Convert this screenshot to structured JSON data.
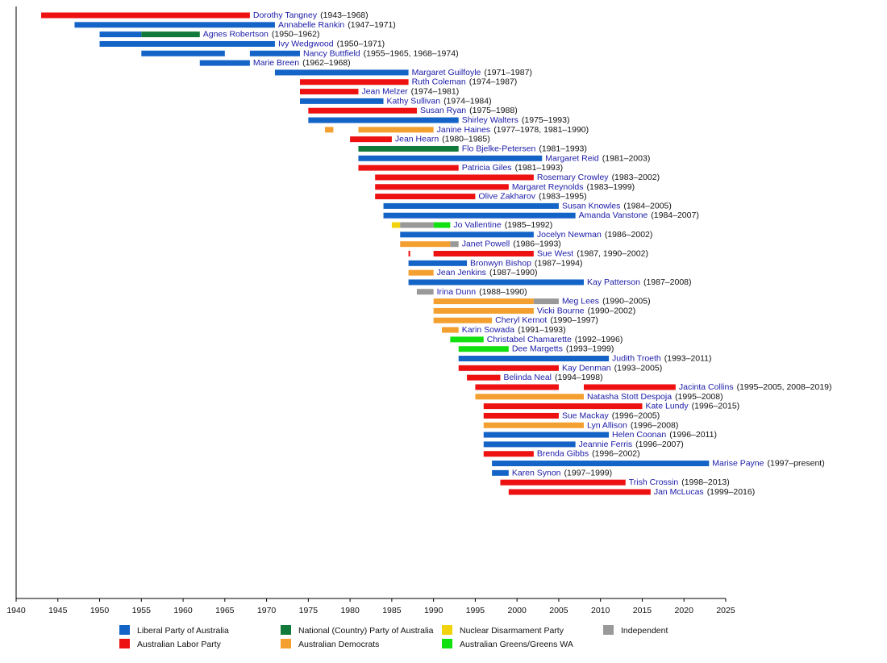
{
  "chart_data": {
    "type": "timeline",
    "xlim": [
      1940,
      2025
    ],
    "xticks": [
      1940,
      1945,
      1950,
      1955,
      1960,
      1965,
      1970,
      1975,
      1980,
      1985,
      1990,
      1995,
      2000,
      2005,
      2010,
      2015,
      2020,
      2025
    ],
    "legend": [
      {
        "name": "Liberal Party of Australia",
        "color": "#1464c8"
      },
      {
        "name": "Australian Labor Party",
        "color": "#ee1111"
      },
      {
        "name": "National (Country) Party of Australia",
        "color": "#117a3a"
      },
      {
        "name": "Australian Democrats",
        "color": "#f4a030"
      },
      {
        "name": "Nuclear Disarmament Party",
        "color": "#f2d20a"
      },
      {
        "name": "Australian Greens/Greens WA",
        "color": "#11e011"
      },
      {
        "name": "Independent",
        "color": "#999999"
      }
    ],
    "rows": [
      {
        "name": "Dorothy Tangney",
        "period": "(1943–1968)",
        "segments": [
          {
            "start": 1943,
            "end": 1968,
            "color": "#ee1111"
          }
        ]
      },
      {
        "name": "Annabelle Rankin",
        "period": "(1947–1971)",
        "segments": [
          {
            "start": 1947,
            "end": 1971,
            "color": "#1464c8"
          }
        ]
      },
      {
        "name": "Agnes Robertson",
        "period": "(1950–1962)",
        "segments": [
          {
            "start": 1950,
            "end": 1955,
            "color": "#1464c8"
          },
          {
            "start": 1955,
            "end": 1962,
            "color": "#117a3a"
          }
        ]
      },
      {
        "name": "Ivy Wedgwood",
        "period": "(1950–1971)",
        "segments": [
          {
            "start": 1950,
            "end": 1971,
            "color": "#1464c8"
          }
        ]
      },
      {
        "name": "Nancy Buttfield",
        "period": "(1955–1965, 1968–1974)",
        "segments": [
          {
            "start": 1955,
            "end": 1965,
            "color": "#1464c8"
          },
          {
            "start": 1968,
            "end": 1974,
            "color": "#1464c8"
          }
        ]
      },
      {
        "name": "Marie Breen",
        "period": "(1962–1968)",
        "segments": [
          {
            "start": 1962,
            "end": 1968,
            "color": "#1464c8"
          }
        ]
      },
      {
        "name": "Margaret Guilfoyle",
        "period": "(1971–1987)",
        "segments": [
          {
            "start": 1971,
            "end": 1987,
            "color": "#1464c8"
          }
        ]
      },
      {
        "name": "Ruth Coleman",
        "period": "(1974–1987)",
        "segments": [
          {
            "start": 1974,
            "end": 1987,
            "color": "#ee1111"
          }
        ]
      },
      {
        "name": "Jean Melzer",
        "period": "(1974–1981)",
        "segments": [
          {
            "start": 1974,
            "end": 1981,
            "color": "#ee1111"
          }
        ]
      },
      {
        "name": "Kathy Sullivan",
        "period": "(1974–1984)",
        "segments": [
          {
            "start": 1974,
            "end": 1984,
            "color": "#1464c8"
          }
        ]
      },
      {
        "name": "Susan Ryan",
        "period": "(1975–1988)",
        "segments": [
          {
            "start": 1975,
            "end": 1988,
            "color": "#ee1111"
          }
        ]
      },
      {
        "name": "Shirley Walters",
        "period": "(1975–1993)",
        "segments": [
          {
            "start": 1975,
            "end": 1993,
            "color": "#1464c8"
          }
        ]
      },
      {
        "name": "Janine Haines",
        "period": "(1977–1978, 1981–1990)",
        "segments": [
          {
            "start": 1977,
            "end": 1978,
            "color": "#f4a030"
          },
          {
            "start": 1981,
            "end": 1990,
            "color": "#f4a030"
          }
        ]
      },
      {
        "name": "Jean Hearn",
        "period": "(1980–1985)",
        "segments": [
          {
            "start": 1980,
            "end": 1985,
            "color": "#ee1111"
          }
        ]
      },
      {
        "name": "Flo Bjelke-Petersen",
        "period": "(1981–1993)",
        "segments": [
          {
            "start": 1981,
            "end": 1993,
            "color": "#117a3a"
          }
        ]
      },
      {
        "name": "Margaret Reid",
        "period": "(1981–2003)",
        "segments": [
          {
            "start": 1981,
            "end": 2003,
            "color": "#1464c8"
          }
        ]
      },
      {
        "name": "Patricia Giles",
        "period": "(1981–1993)",
        "segments": [
          {
            "start": 1981,
            "end": 1993,
            "color": "#ee1111"
          }
        ]
      },
      {
        "name": "Rosemary Crowley",
        "period": "(1983–2002)",
        "segments": [
          {
            "start": 1983,
            "end": 2002,
            "color": "#ee1111"
          }
        ]
      },
      {
        "name": "Margaret Reynolds",
        "period": "(1983–1999)",
        "segments": [
          {
            "start": 1983,
            "end": 1999,
            "color": "#ee1111"
          }
        ]
      },
      {
        "name": "Olive Zakharov",
        "period": "(1983–1995)",
        "segments": [
          {
            "start": 1983,
            "end": 1995,
            "color": "#ee1111"
          }
        ]
      },
      {
        "name": "Susan Knowles",
        "period": "(1984–2005)",
        "segments": [
          {
            "start": 1984,
            "end": 2005,
            "color": "#1464c8"
          }
        ]
      },
      {
        "name": "Amanda Vanstone",
        "period": "(1984–2007)",
        "segments": [
          {
            "start": 1984,
            "end": 2007,
            "color": "#1464c8"
          }
        ]
      },
      {
        "name": "Jo Vallentine",
        "period": "(1985–1992)",
        "segments": [
          {
            "start": 1985,
            "end": 1986,
            "color": "#f2d20a"
          },
          {
            "start": 1986,
            "end": 1990,
            "color": "#999999"
          },
          {
            "start": 1990,
            "end": 1992,
            "color": "#11e011"
          }
        ]
      },
      {
        "name": "Jocelyn Newman",
        "period": "(1986–2002)",
        "segments": [
          {
            "start": 1986,
            "end": 2002,
            "color": "#1464c8"
          }
        ]
      },
      {
        "name": "Janet Powell",
        "period": "(1986–1993)",
        "segments": [
          {
            "start": 1986,
            "end": 1992,
            "color": "#f4a030"
          },
          {
            "start": 1992,
            "end": 1993,
            "color": "#999999"
          }
        ]
      },
      {
        "name": "Sue West",
        "period": "(1987, 1990–2002)",
        "segments": [
          {
            "start": 1987,
            "end": 1987.2,
            "color": "#ee1111"
          },
          {
            "start": 1990,
            "end": 2002,
            "color": "#ee1111"
          }
        ]
      },
      {
        "name": "Bronwyn Bishop",
        "period": "(1987–1994)",
        "segments": [
          {
            "start": 1987,
            "end": 1994,
            "color": "#1464c8"
          }
        ]
      },
      {
        "name": "Jean Jenkins",
        "period": "(1987–1990)",
        "segments": [
          {
            "start": 1987,
            "end": 1990,
            "color": "#f4a030"
          }
        ]
      },
      {
        "name": "Kay Patterson",
        "period": "(1987–2008)",
        "segments": [
          {
            "start": 1987,
            "end": 2008,
            "color": "#1464c8"
          }
        ]
      },
      {
        "name": "Irina Dunn",
        "period": "(1988–1990)",
        "segments": [
          {
            "start": 1988,
            "end": 1990,
            "color": "#999999"
          }
        ]
      },
      {
        "name": "Meg Lees",
        "period": "(1990–2005)",
        "segments": [
          {
            "start": 1990,
            "end": 2002,
            "color": "#f4a030"
          },
          {
            "start": 2002,
            "end": 2005,
            "color": "#999999"
          }
        ]
      },
      {
        "name": "Vicki Bourne",
        "period": "(1990–2002)",
        "segments": [
          {
            "start": 1990,
            "end": 2002,
            "color": "#f4a030"
          }
        ]
      },
      {
        "name": "Cheryl Kernot",
        "period": "(1990–1997)",
        "segments": [
          {
            "start": 1990,
            "end": 1997,
            "color": "#f4a030"
          }
        ]
      },
      {
        "name": "Karin Sowada",
        "period": "(1991–1993)",
        "segments": [
          {
            "start": 1991,
            "end": 1993,
            "color": "#f4a030"
          }
        ]
      },
      {
        "name": "Christabel Chamarette",
        "period": "(1992–1996)",
        "segments": [
          {
            "start": 1992,
            "end": 1996,
            "color": "#11e011"
          }
        ]
      },
      {
        "name": "Dee Margetts",
        "period": "(1993–1999)",
        "segments": [
          {
            "start": 1993,
            "end": 1999,
            "color": "#11e011"
          }
        ]
      },
      {
        "name": "Judith Troeth",
        "period": "(1993–2011)",
        "segments": [
          {
            "start": 1993,
            "end": 2011,
            "color": "#1464c8"
          }
        ]
      },
      {
        "name": "Kay Denman",
        "period": "(1993–2005)",
        "segments": [
          {
            "start": 1993,
            "end": 2005,
            "color": "#ee1111"
          }
        ]
      },
      {
        "name": "Belinda Neal",
        "period": "(1994–1998)",
        "segments": [
          {
            "start": 1994,
            "end": 1998,
            "color": "#ee1111"
          }
        ]
      },
      {
        "name": "Jacinta Collins",
        "period": "(1995–2005, 2008–2019)",
        "segments": [
          {
            "start": 1995,
            "end": 2005,
            "color": "#ee1111"
          },
          {
            "start": 2008,
            "end": 2019,
            "color": "#ee1111"
          }
        ]
      },
      {
        "name": "Natasha Stott Despoja",
        "period": "(1995–2008)",
        "segments": [
          {
            "start": 1995,
            "end": 2008,
            "color": "#f4a030"
          }
        ]
      },
      {
        "name": "Kate Lundy",
        "period": "(1996–2015)",
        "segments": [
          {
            "start": 1996,
            "end": 2015,
            "color": "#ee1111"
          }
        ]
      },
      {
        "name": "Sue Mackay",
        "period": "(1996–2005)",
        "segments": [
          {
            "start": 1996,
            "end": 2005,
            "color": "#ee1111"
          }
        ]
      },
      {
        "name": "Lyn Allison",
        "period": "(1996–2008)",
        "segments": [
          {
            "start": 1996,
            "end": 2008,
            "color": "#f4a030"
          }
        ]
      },
      {
        "name": "Helen Coonan",
        "period": "(1996–2011)",
        "segments": [
          {
            "start": 1996,
            "end": 2011,
            "color": "#1464c8"
          }
        ]
      },
      {
        "name": "Jeannie Ferris",
        "period": "(1996–2007)",
        "segments": [
          {
            "start": 1996,
            "end": 2007,
            "color": "#1464c8"
          }
        ]
      },
      {
        "name": "Brenda Gibbs",
        "period": "(1996–2002)",
        "segments": [
          {
            "start": 1996,
            "end": 2002,
            "color": "#ee1111"
          }
        ]
      },
      {
        "name": "Marise Payne",
        "period": "(1997–present)",
        "segments": [
          {
            "start": 1997,
            "end": 2023,
            "color": "#1464c8"
          }
        ]
      },
      {
        "name": "Karen Synon",
        "period": "(1997–1999)",
        "segments": [
          {
            "start": 1997,
            "end": 1999,
            "color": "#1464c8"
          }
        ]
      },
      {
        "name": "Trish Crossin",
        "period": "(1998–2013)",
        "segments": [
          {
            "start": 1998,
            "end": 2013,
            "color": "#ee1111"
          }
        ]
      },
      {
        "name": "Jan McLucas",
        "period": "(1999–2016)",
        "segments": [
          {
            "start": 1999,
            "end": 2016,
            "color": "#ee1111"
          }
        ]
      }
    ]
  }
}
